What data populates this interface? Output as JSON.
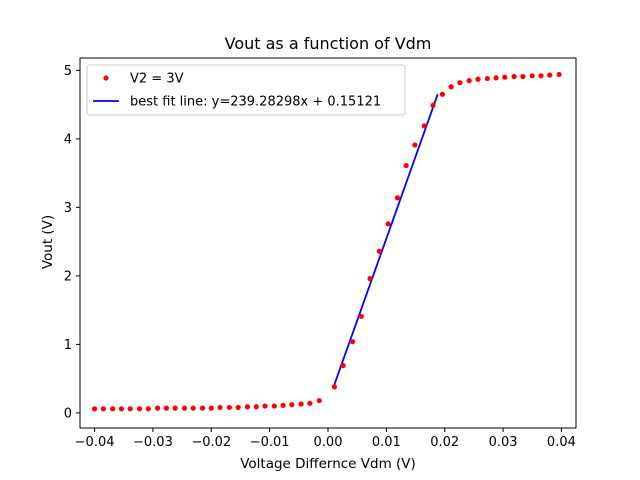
{
  "chart_data": {
    "type": "scatter",
    "title": "Vout as a function of Vdm",
    "xlabel": "Voltage Differnce Vdm (V)",
    "ylabel": "Vout (V)",
    "xlim": [
      -0.0425,
      0.0425
    ],
    "ylim": [
      -0.22,
      5.18
    ],
    "xticks": [
      -0.04,
      -0.03,
      -0.02,
      -0.01,
      0.0,
      0.01,
      0.02,
      0.03,
      0.04
    ],
    "xtick_labels": [
      "−0.04",
      "−0.03",
      "−0.02",
      "−0.01",
      "0.00",
      "0.01",
      "0.02",
      "0.03",
      "0.04"
    ],
    "yticks": [
      0,
      1,
      2,
      3,
      4,
      5
    ],
    "ytick_labels": [
      "0",
      "1",
      "2",
      "3",
      "4",
      "5"
    ],
    "grid": false,
    "legend_position": "top-left",
    "series": [
      {
        "name": "V2 = 3V",
        "kind": "scatter",
        "color": "#ff0000",
        "x": [
          -0.04,
          -0.0385,
          -0.0369,
          -0.0354,
          -0.0339,
          -0.0323,
          -0.0308,
          -0.0292,
          -0.0277,
          -0.0262,
          -0.0246,
          -0.0231,
          -0.0215,
          -0.02,
          -0.0185,
          -0.0169,
          -0.0154,
          -0.0138,
          -0.0123,
          -0.0108,
          -0.0092,
          -0.0077,
          -0.0062,
          -0.0046,
          -0.0031,
          -0.0015,
          0.0011,
          0.0026,
          0.0042,
          0.0057,
          0.0072,
          0.0088,
          0.0103,
          0.0119,
          0.0134,
          0.0149,
          0.0165,
          0.018,
          0.0196,
          0.0211,
          0.0226,
          0.0242,
          0.0257,
          0.0273,
          0.0288,
          0.0303,
          0.0319,
          0.0334,
          0.035,
          0.0365,
          0.038,
          0.0396
        ],
        "y": [
          0.06,
          0.06,
          0.06,
          0.06,
          0.06,
          0.06,
          0.06,
          0.07,
          0.07,
          0.07,
          0.07,
          0.07,
          0.07,
          0.07,
          0.08,
          0.08,
          0.08,
          0.09,
          0.09,
          0.1,
          0.1,
          0.11,
          0.12,
          0.13,
          0.14,
          0.18,
          0.38,
          0.69,
          1.04,
          1.41,
          1.96,
          2.36,
          2.76,
          3.14,
          3.61,
          3.91,
          4.19,
          4.49,
          4.65,
          4.76,
          4.82,
          4.85,
          4.87,
          4.88,
          4.89,
          4.9,
          4.91,
          4.91,
          4.92,
          4.92,
          4.93,
          4.94
        ]
      },
      {
        "name": "best fit line: y=239.28298x + 0.15121",
        "kind": "line",
        "color": "#0000ff",
        "x": [
          0.0011,
          0.0188
        ],
        "y": [
          0.4144,
          4.6497
        ]
      }
    ]
  }
}
